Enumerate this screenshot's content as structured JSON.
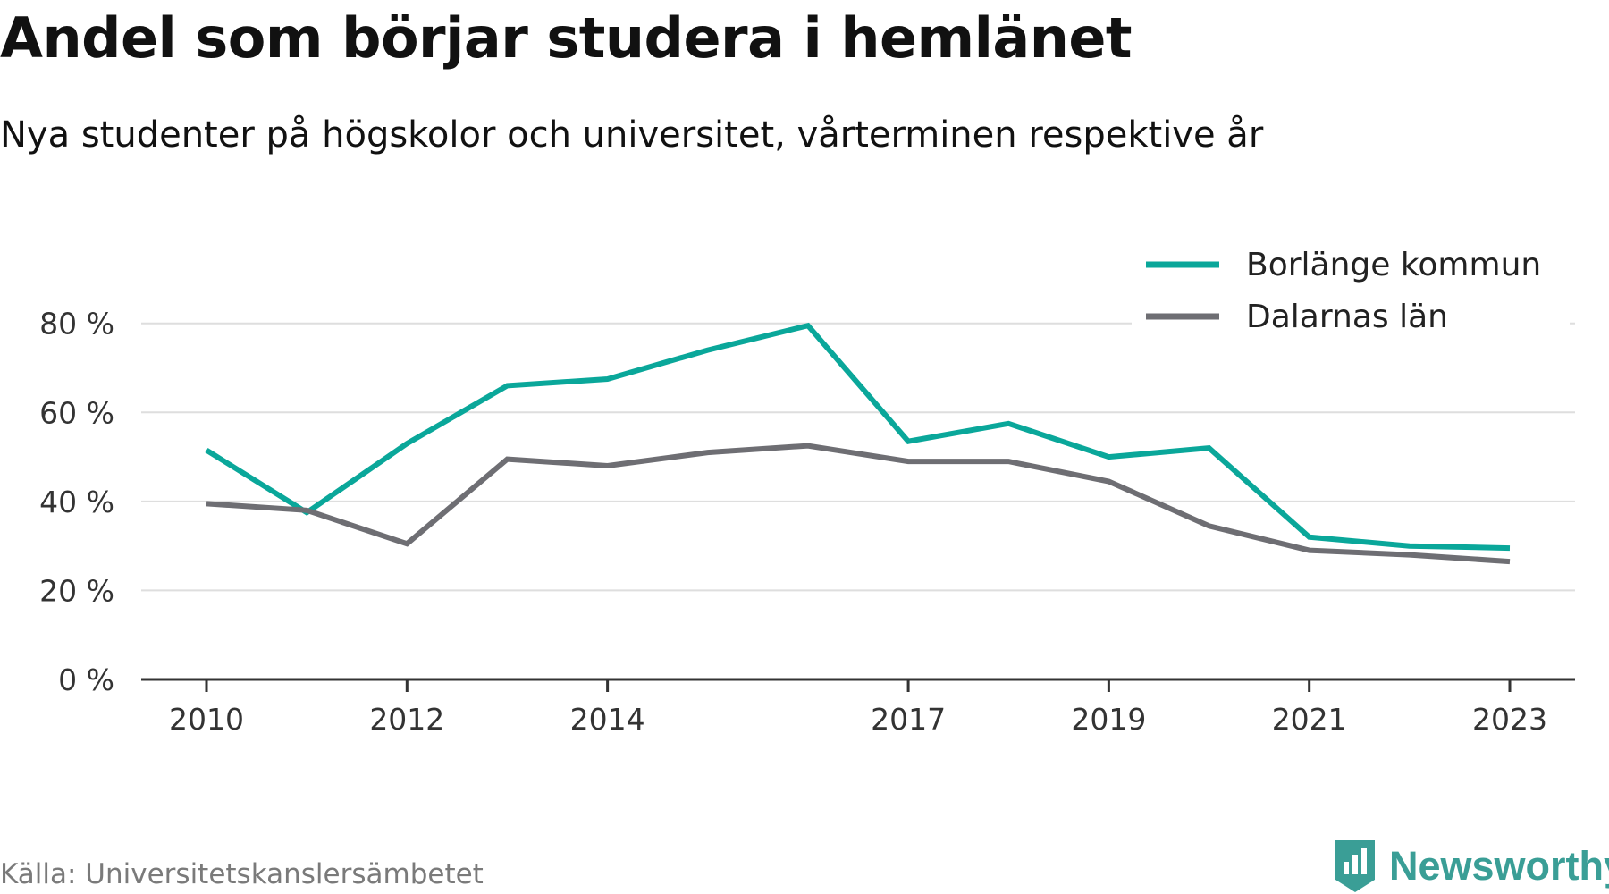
{
  "header": {
    "title": "Andel som börjar studera i hemlänet",
    "subtitle": "Nya studenter på högskolor och universitet, vårterminen respektive år"
  },
  "footer": {
    "source": "Källa: Universitetskanslersämbetet",
    "brand": "Newsworthy",
    "brand_icon": "bar-chart-shield-icon"
  },
  "colors": {
    "borlange": "#0aa79a",
    "dalarna": "#6e6e73",
    "grid": "#dedede",
    "axis": "#333333",
    "brand": "#3a9e96"
  },
  "chart_data": {
    "type": "line",
    "title": "Andel som börjar studera i hemlänet",
    "subtitle": "Nya studenter på högskolor och universitet, vårterminen respektive år",
    "xlabel": "",
    "ylabel": "",
    "x": [
      2010,
      2011,
      2012,
      2013,
      2014,
      2015,
      2016,
      2017,
      2018,
      2019,
      2020,
      2021,
      2022,
      2023
    ],
    "x_tick_labels": [
      "2010",
      "2012",
      "2014",
      "2017",
      "2019",
      "2021",
      "2023"
    ],
    "y_ticks": [
      0,
      20,
      40,
      60,
      80
    ],
    "y_tick_labels": [
      "0 %",
      "20 %",
      "40 %",
      "60 %",
      "80 %"
    ],
    "ylim": [
      0,
      80
    ],
    "grid": true,
    "legend_position": "top-right",
    "series": [
      {
        "name": "Borlänge kommun",
        "color": "#0aa79a",
        "values": [
          51.5,
          37.5,
          53,
          66,
          67.5,
          74,
          79.5,
          53.5,
          57.5,
          50,
          52,
          32,
          30,
          29.5
        ]
      },
      {
        "name": "Dalarnas län",
        "color": "#6e6e73",
        "values": [
          39.5,
          38,
          30.5,
          49.5,
          48,
          51,
          52.5,
          49,
          49,
          44.5,
          34.5,
          29,
          28,
          26.5
        ]
      }
    ]
  }
}
